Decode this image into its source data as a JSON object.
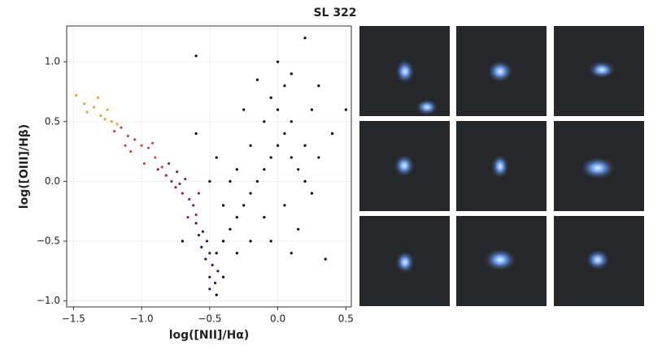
{
  "chart_data": {
    "type": "scatter",
    "title": "SL 322",
    "x_label": "log([NII]/Hα)",
    "y_label": "log([OIII]/Hβ)",
    "xlim": [
      -1.55,
      0.54
    ],
    "ylim": [
      -1.05,
      1.3
    ],
    "xticks": [
      {
        "value": -1.5,
        "label": "−1.5"
      },
      {
        "value": -1.0,
        "label": "−1.0"
      },
      {
        "value": -0.5,
        "label": "−0.5"
      },
      {
        "value": 0.0,
        "label": "0.0"
      },
      {
        "value": 0.5,
        "label": "0.5"
      }
    ],
    "yticks": [
      {
        "value": -1.0,
        "label": "−1.0"
      },
      {
        "value": -0.5,
        "label": "−0.5"
      },
      {
        "value": 0.0,
        "label": "0.0"
      },
      {
        "value": 0.5,
        "label": "0.5"
      },
      {
        "value": 1.0,
        "label": "1.0"
      }
    ],
    "grid": true,
    "series": [
      {
        "color": "#000000",
        "x": [
          -0.45,
          -0.4,
          -0.35,
          -0.3,
          -0.25,
          -0.2,
          -0.15,
          -0.1,
          -0.05,
          0.0,
          0.05,
          0.0,
          0.05,
          0.1,
          0.0,
          -0.05,
          -0.1,
          -0.2,
          -0.3,
          -0.35,
          -0.4,
          0.1,
          0.15,
          0.2,
          0.1,
          0.2,
          0.25,
          0.3,
          -0.1,
          -0.2,
          -0.3,
          -0.4,
          -0.45,
          0.05,
          0.15,
          -0.5,
          -0.45,
          -0.6,
          0.4,
          0.35,
          0.2,
          -0.6,
          0.3,
          -0.25,
          -0.15,
          0.1,
          -0.05,
          0.5,
          -0.7,
          0.25
        ],
        "values": [
          -0.6,
          -0.5,
          -0.4,
          -0.3,
          -0.2,
          -0.1,
          0.0,
          0.1,
          0.2,
          0.3,
          0.4,
          0.6,
          0.8,
          0.9,
          1.0,
          0.7,
          0.5,
          0.3,
          0.1,
          0.0,
          -0.2,
          0.2,
          0.1,
          0.3,
          0.5,
          0.0,
          -0.1,
          0.2,
          -0.3,
          -0.5,
          -0.6,
          -0.8,
          -0.95,
          -0.2,
          -0.4,
          0.0,
          0.2,
          0.4,
          0.4,
          -0.65,
          1.2,
          1.05,
          0.8,
          0.6,
          0.85,
          -0.6,
          -0.5,
          0.6,
          -0.5,
          0.6
        ]
      },
      {
        "color": "#3d1250",
        "x": [
          -0.6,
          -0.55,
          -0.52,
          -0.5,
          -0.48,
          -0.56,
          -0.5,
          -0.46,
          -0.53,
          -0.58,
          -0.44,
          -0.5
        ],
        "values": [
          -0.35,
          -0.42,
          -0.5,
          -0.6,
          -0.7,
          -0.55,
          -0.8,
          -0.85,
          -0.65,
          -0.45,
          -0.75,
          -0.9
        ]
      },
      {
        "color": "#8c2369",
        "x": [
          -0.88,
          -0.82,
          -0.78,
          -0.75,
          -0.7,
          -0.68,
          -0.65,
          -0.62,
          -0.8,
          -0.72,
          -0.6,
          -0.58,
          -0.66,
          -0.74
        ],
        "values": [
          0.1,
          0.05,
          0.0,
          -0.05,
          -0.1,
          0.02,
          -0.15,
          -0.2,
          0.15,
          -0.02,
          -0.28,
          -0.1,
          -0.3,
          0.08
        ]
      },
      {
        "color": "#d9404a",
        "x": [
          -1.15,
          -1.1,
          -1.05,
          -1.0,
          -0.95,
          -0.9,
          -1.2,
          -1.08,
          -0.98,
          -0.92,
          -0.85,
          -1.12
        ],
        "values": [
          0.45,
          0.38,
          0.35,
          0.3,
          0.28,
          0.2,
          0.42,
          0.25,
          0.15,
          0.32,
          0.12,
          0.3
        ]
      },
      {
        "color": "#f4a03a",
        "x": [
          -1.48,
          -1.42,
          -1.35,
          -1.3,
          -1.25,
          -1.22,
          -1.18,
          -1.4,
          -1.32,
          -1.27
        ],
        "values": [
          0.72,
          0.65,
          0.62,
          0.55,
          0.6,
          0.5,
          0.48,
          0.58,
          0.7,
          0.52
        ]
      }
    ]
  }
}
